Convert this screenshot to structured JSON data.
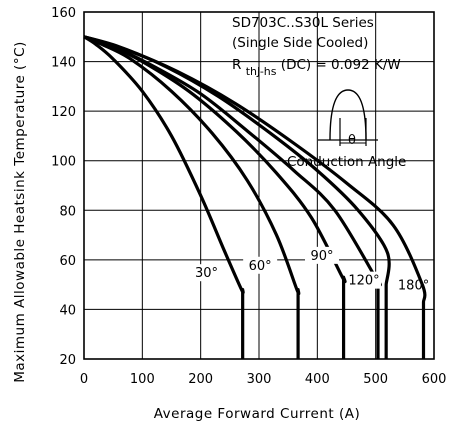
{
  "chart_data": {
    "type": "line",
    "title": "",
    "xlabel": "Average Forward Current (A)",
    "ylabel": "Maximum Allowable Heatsink Temperature (°C)",
    "xlim": [
      0,
      600
    ],
    "ylim": [
      20,
      160
    ],
    "xticks": [
      "0",
      "100",
      "200",
      "300",
      "400",
      "500",
      "600"
    ],
    "yticks": [
      "20",
      "40",
      "60",
      "80",
      "100",
      "120",
      "140",
      "160"
    ],
    "grid": true,
    "annotation": {
      "line1": "SD703C..S30L Series",
      "line2": "(Single Side Cooled)",
      "line3_prefix": "R",
      "line3_sub": "thJ-hs",
      "line3_suffix": " (DC) = 0.092 K/W",
      "conduction_label": "Conduction Angle",
      "theta_symbol": "θ"
    },
    "series": [
      {
        "name": "30°",
        "label": "30°",
        "x": [
          0,
          20,
          50,
          100,
          150,
          200,
          240,
          270,
          272,
          272
        ],
        "y": [
          150,
          147,
          141,
          128,
          110,
          86,
          64,
          48,
          48,
          20
        ]
      },
      {
        "name": "60°",
        "label": "60°",
        "x": [
          0,
          30,
          80,
          150,
          220,
          280,
          330,
          365,
          367,
          367
        ],
        "y": [
          150,
          147,
          141,
          128,
          111,
          92,
          70,
          48,
          48,
          20
        ]
      },
      {
        "name": "90°",
        "label": "90°",
        "x": [
          0,
          40,
          100,
          180,
          260,
          330,
          390,
          443,
          445,
          445
        ],
        "y": [
          150,
          147,
          140,
          128,
          112,
          95,
          77,
          53,
          53,
          20
        ]
      },
      {
        "name": "120°",
        "label": "120°",
        "x": [
          0,
          50,
          120,
          200,
          280,
          360,
          430,
          502,
          504,
          504
        ],
        "y": [
          150,
          146,
          138,
          127,
          112,
          96,
          80,
          52,
          52,
          20
        ]
      },
      {
        "name": "180°",
        "label": "180°",
        "x": [
          0,
          60,
          140,
          230,
          320,
          400,
          470,
          520,
          518,
          518
        ],
        "y": [
          150,
          146,
          138,
          126,
          111,
          96,
          80,
          63,
          50,
          20
        ]
      },
      {
        "name": "DC",
        "label": "",
        "x": [
          0,
          70,
          160,
          260,
          360,
          450,
          530,
          580,
          582,
          582
        ],
        "y": [
          150,
          145,
          136,
          123,
          107,
          91,
          74,
          50,
          43,
          20
        ]
      }
    ]
  }
}
